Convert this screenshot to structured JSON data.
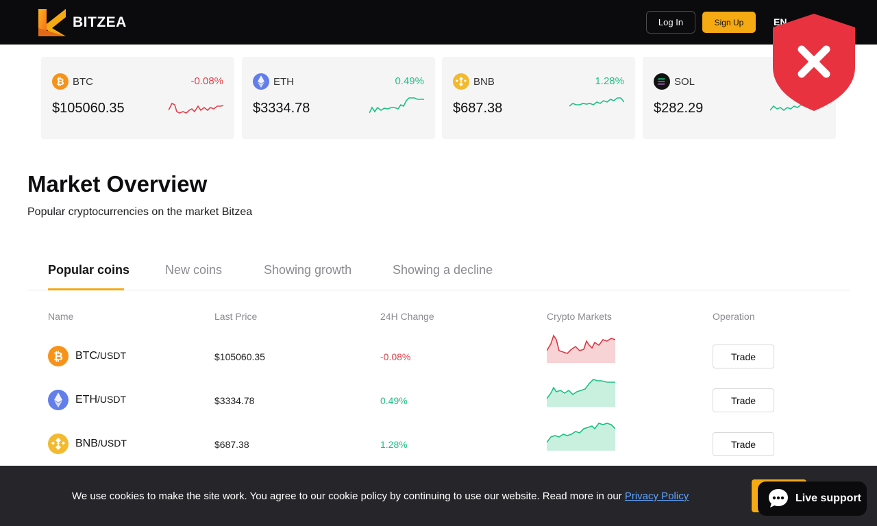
{
  "header": {
    "brand": "BITZEA",
    "login_label": "Log In",
    "signup_label": "Sign Up",
    "language": "EN",
    "colors": {
      "background": "#0b0b0d",
      "accent": "#f5a912"
    }
  },
  "tickers": [
    {
      "symbol": "BTC",
      "change": "-0.08%",
      "price": "$105060.35",
      "trend": "down",
      "icon": "bitcoin-icon"
    },
    {
      "symbol": "ETH",
      "change": "0.49%",
      "price": "$3334.78",
      "trend": "up",
      "icon": "ethereum-icon"
    },
    {
      "symbol": "BNB",
      "change": "1.28%",
      "price": "$687.38",
      "trend": "up",
      "icon": "bnb-icon"
    },
    {
      "symbol": "SOL",
      "change": "",
      "price": "$282.29",
      "trend": "up",
      "icon": "solana-icon"
    }
  ],
  "overview": {
    "title": "Market Overview",
    "subtitle": "Popular cryptocurrencies on the market Bitzea"
  },
  "tabs": [
    {
      "label": "Popular coins",
      "active": true
    },
    {
      "label": "New coins",
      "active": false
    },
    {
      "label": "Showing growth",
      "active": false
    },
    {
      "label": "Showing a decline",
      "active": false
    }
  ],
  "table": {
    "headers": [
      "Name",
      "Last Price",
      "24H Change",
      "Crypto Markets",
      "Operation"
    ],
    "rows": [
      {
        "base": "BTC",
        "quote": "/USDT",
        "price": "$105060.35",
        "change": "-0.08%",
        "action": "Trade",
        "trend": "down"
      },
      {
        "base": "ETH",
        "quote": "/USDT",
        "price": "$3334.78",
        "change": "0.49%",
        "action": "Trade",
        "trend": "up"
      },
      {
        "base": "BNB",
        "quote": "/USDT",
        "price": "$687.38",
        "change": "1.28%",
        "action": "Trade",
        "trend": "up"
      }
    ]
  },
  "cookie": {
    "text": "We use cookies to make the site work. You agree to our cookie policy by continuing to use our website. Read more in our ",
    "link": "Privacy Policy"
  },
  "support": {
    "label": "Live support"
  },
  "status_colors": {
    "negative": "#e0414a",
    "positive": "#1dbf84"
  }
}
